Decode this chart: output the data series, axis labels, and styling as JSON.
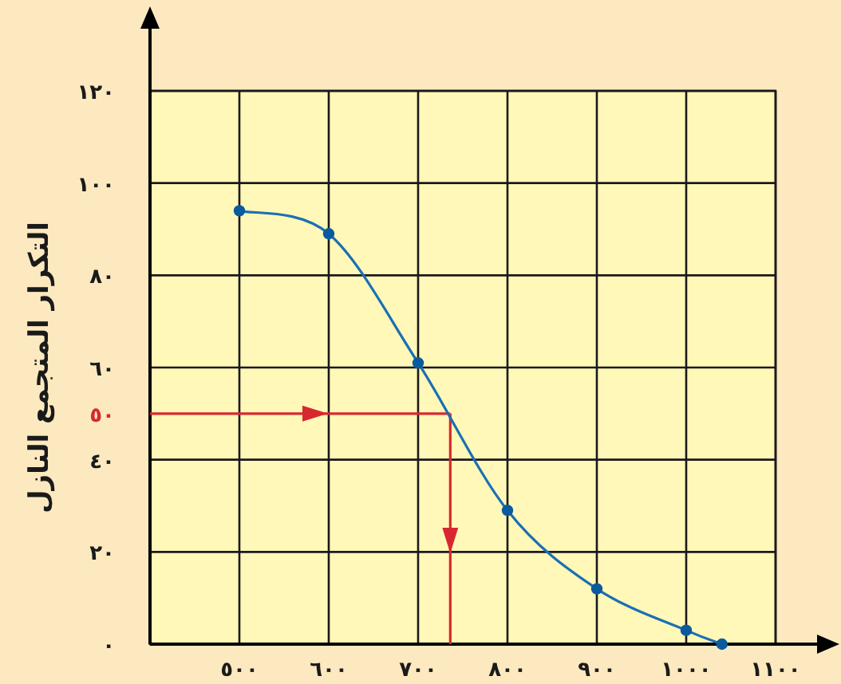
{
  "chart_data": {
    "type": "line",
    "ylabel": "التكرار المتجمع النازل",
    "x": [
      500,
      600,
      700,
      800,
      900,
      1000,
      1040
    ],
    "series": [
      {
        "color": "#1a6fb5",
        "values": [
          94,
          89,
          61,
          29,
          12,
          3,
          0
        ]
      }
    ],
    "marker": "circle",
    "grid": true,
    "xlim": [
      400,
      1100
    ],
    "ylim": [
      0,
      120
    ],
    "xticks": [
      {
        "value": 500,
        "label": "٥٠٠"
      },
      {
        "value": 600,
        "label": "٦٠٠"
      },
      {
        "value": 700,
        "label": "٧٠٠"
      },
      {
        "value": 800,
        "label": "٨٠٠"
      },
      {
        "value": 900,
        "label": "٩٠٠"
      },
      {
        "value": 1000,
        "label": "١٠٠٠"
      },
      {
        "value": 1100,
        "label": "١١٠٠"
      }
    ],
    "yticks": [
      {
        "value": 0,
        "label": "٠"
      },
      {
        "value": 20,
        "label": "٢٠"
      },
      {
        "value": 40,
        "label": "٤٠"
      },
      {
        "value": 60,
        "label": "٦٠"
      },
      {
        "value": 80,
        "label": "٨٠"
      },
      {
        "value": 100,
        "label": "١٠٠"
      },
      {
        "value": 120,
        "label": "١٢٠"
      }
    ],
    "ref_lines": [
      {
        "axis": "y",
        "value": 50,
        "label": "٥٠",
        "color": "#d8282f"
      },
      {
        "axis": "x",
        "value": 736,
        "color": "#d8282f"
      }
    ]
  }
}
